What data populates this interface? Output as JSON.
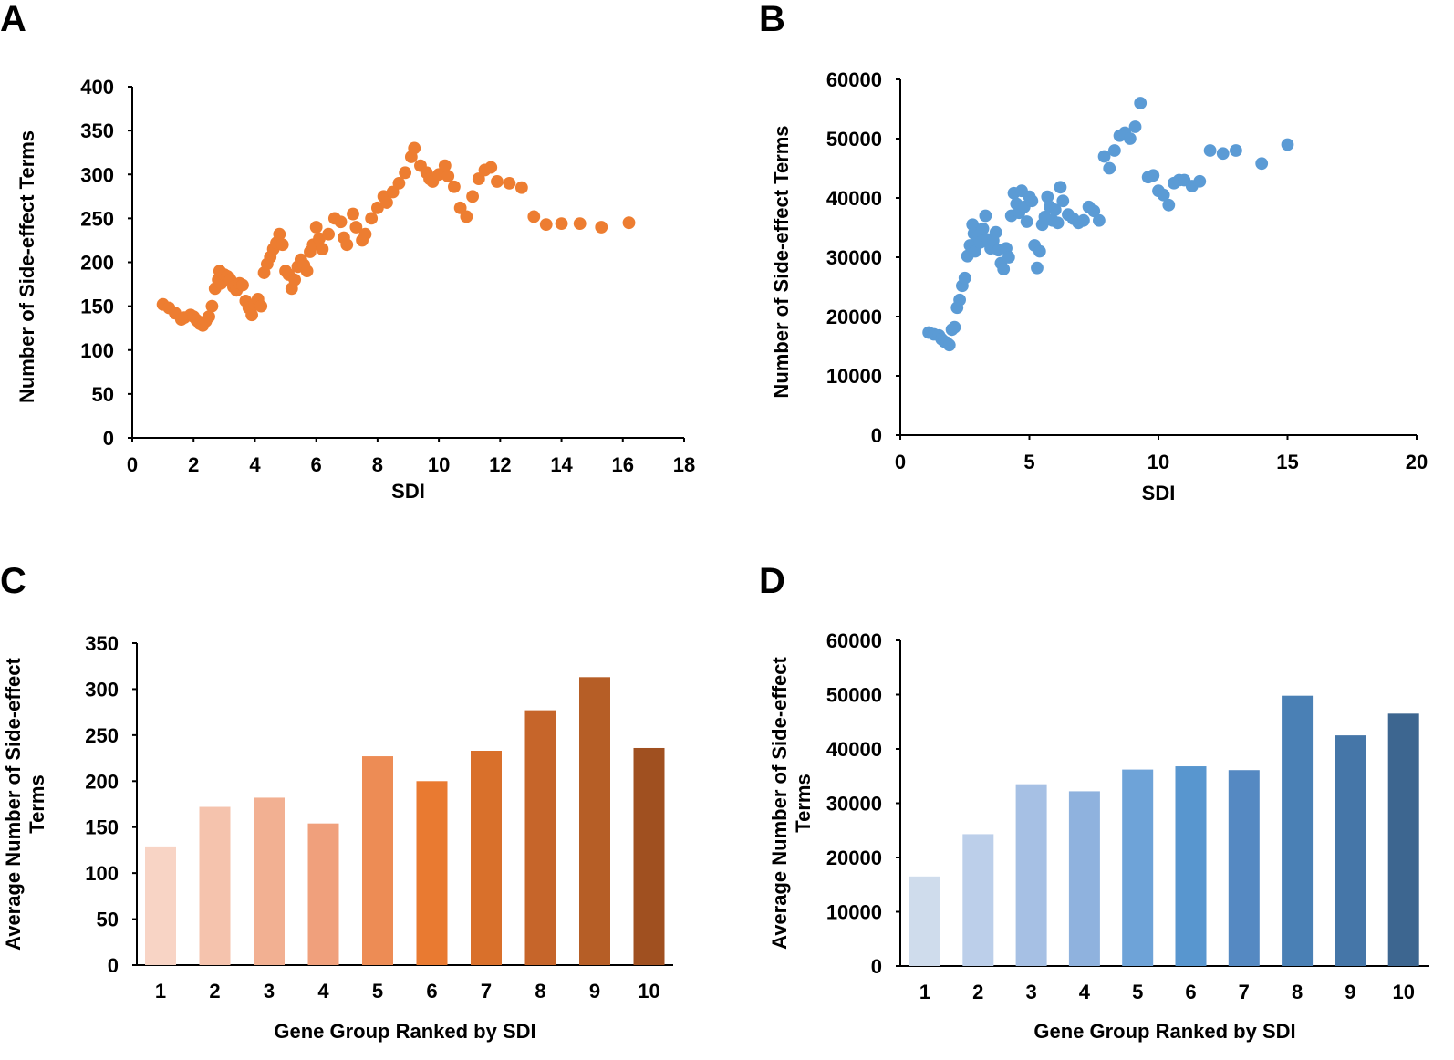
{
  "chart_data": [
    {
      "panel": "A",
      "type": "scatter",
      "xlabel": "SDI",
      "ylabel": "Number of Side-effect Terms",
      "xlim": [
        0,
        18
      ],
      "ylim": [
        0,
        400
      ],
      "xticks": [
        0,
        2,
        4,
        6,
        8,
        10,
        12,
        14,
        16,
        18
      ],
      "yticks": [
        0,
        50,
        100,
        150,
        200,
        250,
        300,
        350,
        400
      ],
      "color": "#ed7d31",
      "x": [
        1.0,
        1.2,
        1.4,
        1.6,
        1.7,
        1.9,
        2.0,
        2.1,
        2.2,
        2.3,
        2.4,
        2.5,
        2.6,
        2.7,
        2.8,
        2.85,
        2.9,
        3.0,
        3.1,
        3.2,
        3.3,
        3.4,
        3.5,
        3.6,
        3.7,
        3.8,
        3.9,
        4.0,
        4.1,
        4.2,
        4.3,
        4.4,
        4.5,
        4.6,
        4.7,
        4.8,
        4.9,
        5.0,
        5.1,
        5.2,
        5.3,
        5.4,
        5.5,
        5.6,
        5.7,
        5.8,
        5.9,
        6.0,
        6.1,
        6.2,
        6.4,
        6.6,
        6.8,
        6.9,
        7.0,
        7.2,
        7.3,
        7.5,
        7.6,
        7.8,
        8.0,
        8.2,
        8.3,
        8.5,
        8.7,
        8.9,
        9.1,
        9.2,
        9.4,
        9.6,
        9.7,
        9.8,
        10.0,
        10.2,
        10.3,
        10.5,
        10.7,
        10.9,
        11.1,
        11.3,
        11.5,
        11.7,
        11.9,
        12.3,
        12.7,
        13.1,
        13.5,
        14.0,
        14.6,
        15.3,
        16.2
      ],
      "y": [
        152,
        148,
        142,
        135,
        137,
        140,
        138,
        134,
        130,
        128,
        133,
        138,
        150,
        170,
        180,
        190,
        176,
        186,
        184,
        180,
        172,
        168,
        176,
        174,
        156,
        148,
        140,
        152,
        158,
        150,
        188,
        198,
        206,
        215,
        222,
        232,
        220,
        190,
        186,
        170,
        180,
        195,
        203,
        197,
        190,
        212,
        220,
        240,
        227,
        215,
        232,
        250,
        246,
        228,
        220,
        255,
        240,
        225,
        232,
        250,
        262,
        275,
        268,
        280,
        290,
        302,
        320,
        330,
        310,
        302,
        295,
        292,
        300,
        310,
        298,
        286,
        262,
        252,
        275,
        295,
        305,
        308,
        292,
        290,
        285,
        252,
        243,
        244,
        244,
        240,
        245
      ],
      "min_r": 6
    },
    {
      "panel": "B",
      "type": "scatter",
      "xlabel": "SDI",
      "ylabel": "Number of Side-effect Terms",
      "xlim": [
        0,
        20
      ],
      "ylim": [
        0,
        60000
      ],
      "xticks": [
        0,
        5,
        10,
        15,
        20
      ],
      "yticks": [
        0,
        10000,
        20000,
        30000,
        40000,
        50000,
        60000
      ],
      "color": "#5b9bd5",
      "x": [
        1.1,
        1.3,
        1.5,
        1.6,
        1.7,
        1.8,
        1.9,
        2.0,
        2.1,
        2.2,
        2.3,
        2.4,
        2.5,
        2.6,
        2.7,
        2.8,
        2.85,
        2.9,
        3.0,
        3.1,
        3.2,
        3.3,
        3.4,
        3.5,
        3.6,
        3.7,
        3.8,
        3.9,
        4.0,
        4.1,
        4.2,
        4.3,
        4.4,
        4.5,
        4.6,
        4.7,
        4.8,
        4.9,
        5.0,
        5.1,
        5.2,
        5.3,
        5.4,
        5.5,
        5.6,
        5.7,
        5.8,
        5.9,
        6.0,
        6.1,
        6.2,
        6.3,
        6.5,
        6.7,
        6.9,
        7.1,
        7.3,
        7.5,
        7.7,
        7.9,
        8.1,
        8.3,
        8.5,
        8.7,
        8.9,
        9.1,
        9.3,
        9.6,
        9.8,
        10.0,
        10.2,
        10.4,
        10.6,
        10.8,
        11.0,
        11.3,
        11.6,
        12.0,
        12.5,
        13.0,
        14.0,
        15.0
      ],
      "y": [
        17300,
        17000,
        16800,
        16200,
        15800,
        15600,
        15200,
        17800,
        18200,
        21500,
        22800,
        25200,
        26500,
        30200,
        32000,
        35500,
        34000,
        31000,
        33500,
        32500,
        34800,
        37000,
        33000,
        31500,
        32800,
        34200,
        31200,
        29000,
        28000,
        31500,
        30000,
        37000,
        40800,
        39000,
        37500,
        41200,
        38500,
        36000,
        40200,
        39500,
        32000,
        28200,
        31000,
        35500,
        36800,
        40200,
        38500,
        36200,
        38000,
        35800,
        41800,
        39500,
        37200,
        36500,
        35800,
        36200,
        38500,
        37800,
        36200,
        47000,
        45000,
        48000,
        50500,
        51000,
        50000,
        52000,
        56000,
        43500,
        43800,
        41200,
        40500,
        38800,
        42500,
        43000,
        43000,
        42000,
        42800,
        48000,
        47500,
        48000,
        45800,
        49000
      ],
      "min_r": 6
    },
    {
      "panel": "C",
      "type": "bar",
      "xlabel": "Gene Group Ranked by SDI",
      "ylabel": "Average Number of Side-effect Terms",
      "ylabel_lines": [
        "Average Number of Side-effect",
        "Terms"
      ],
      "categories": [
        "1",
        "2",
        "3",
        "4",
        "5",
        "6",
        "7",
        "8",
        "9",
        "10"
      ],
      "values": [
        129,
        172,
        182,
        154,
        227,
        200,
        233,
        277,
        313,
        236
      ],
      "ylim": [
        0,
        350
      ],
      "yticks": [
        0,
        50,
        100,
        150,
        200,
        250,
        300,
        350
      ],
      "colors": [
        "#f8d4c5",
        "#f5c3ad",
        "#f2b092",
        "#f0a07c",
        "#ed8c55",
        "#e97a31",
        "#d9702b",
        "#c6652a",
        "#b65e26",
        "#a05020"
      ]
    },
    {
      "panel": "D",
      "type": "bar",
      "xlabel": "Gene Group Ranked by SDI",
      "ylabel": "Average Number of  Side-effect Terms",
      "ylabel_lines": [
        "Average Number of  Side-effect",
        "Terms"
      ],
      "categories": [
        "1",
        "2",
        "3",
        "4",
        "5",
        "6",
        "7",
        "8",
        "9",
        "10"
      ],
      "values": [
        16500,
        24300,
        33500,
        32200,
        36200,
        36800,
        36100,
        49800,
        42500,
        46500
      ],
      "ylim": [
        0,
        60000
      ],
      "yticks": [
        0,
        10000,
        20000,
        30000,
        40000,
        50000,
        60000
      ],
      "colors": [
        "#cfdcec",
        "#bccfea",
        "#a6c0e4",
        "#8fb2de",
        "#6ea3d8",
        "#5896cf",
        "#5589c2",
        "#4a80b5",
        "#4576a8",
        "#3d6690"
      ]
    }
  ]
}
